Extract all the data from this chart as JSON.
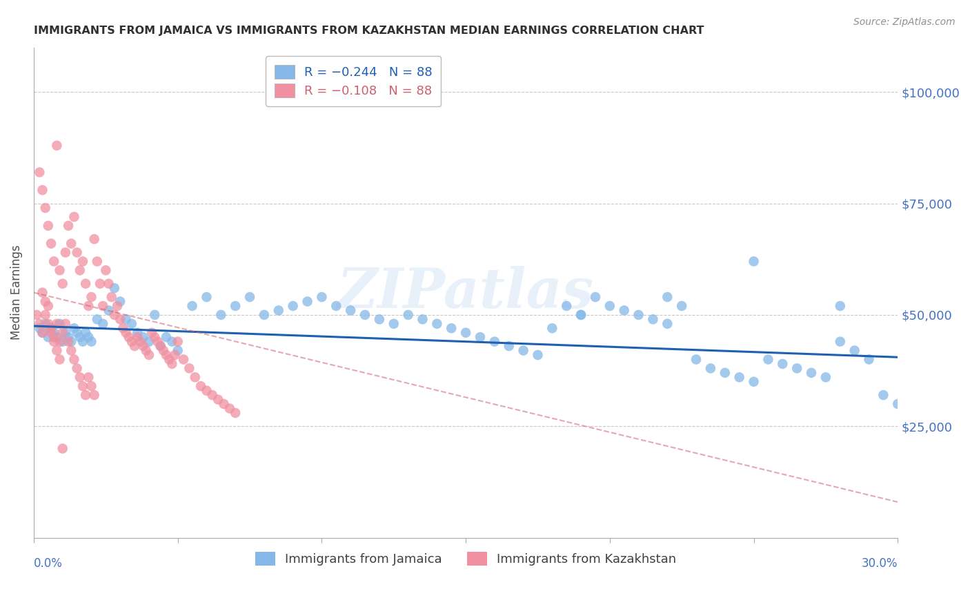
{
  "title": "IMMIGRANTS FROM JAMAICA VS IMMIGRANTS FROM KAZAKHSTAN MEDIAN EARNINGS CORRELATION CHART",
  "source": "Source: ZipAtlas.com",
  "ylabel": "Median Earnings",
  "xlim": [
    0.0,
    0.3
  ],
  "ylim": [
    0,
    110000
  ],
  "watermark": "ZIPatlas",
  "legend_label_jamaica": "Immigrants from Jamaica",
  "legend_label_kazakhstan": "Immigrants from Kazakhstan",
  "blue_color": "#85b8e8",
  "pink_color": "#f090a0",
  "blue_line_color": "#2060b0",
  "pink_line_color": "#d06070",
  "axis_color": "#4472c4",
  "title_color": "#303030",
  "source_color": "#909090",
  "background_color": "#ffffff",
  "grid_color": "#c8c8c8",
  "jamaica_x": [
    0.002,
    0.003,
    0.004,
    0.005,
    0.006,
    0.007,
    0.008,
    0.009,
    0.01,
    0.011,
    0.012,
    0.013,
    0.014,
    0.015,
    0.016,
    0.017,
    0.018,
    0.019,
    0.02,
    0.022,
    0.024,
    0.026,
    0.028,
    0.03,
    0.032,
    0.034,
    0.036,
    0.038,
    0.04,
    0.042,
    0.044,
    0.046,
    0.048,
    0.05,
    0.055,
    0.06,
    0.065,
    0.07,
    0.075,
    0.08,
    0.085,
    0.09,
    0.095,
    0.1,
    0.105,
    0.11,
    0.115,
    0.12,
    0.125,
    0.13,
    0.135,
    0.14,
    0.145,
    0.15,
    0.155,
    0.16,
    0.165,
    0.17,
    0.175,
    0.18,
    0.185,
    0.19,
    0.195,
    0.2,
    0.205,
    0.21,
    0.215,
    0.22,
    0.225,
    0.23,
    0.235,
    0.24,
    0.245,
    0.25,
    0.255,
    0.26,
    0.265,
    0.27,
    0.275,
    0.28,
    0.285,
    0.29,
    0.295,
    0.3,
    0.28,
    0.25,
    0.22,
    0.19
  ],
  "jamaica_y": [
    47000,
    46000,
    48000,
    45000,
    47000,
    46000,
    45000,
    48000,
    44000,
    46000,
    45000,
    44000,
    47000,
    46000,
    45000,
    44000,
    46000,
    45000,
    44000,
    49000,
    48000,
    51000,
    56000,
    53000,
    49000,
    48000,
    46000,
    45000,
    44000,
    50000,
    43000,
    45000,
    44000,
    42000,
    52000,
    54000,
    50000,
    52000,
    54000,
    50000,
    51000,
    52000,
    53000,
    54000,
    52000,
    51000,
    50000,
    49000,
    48000,
    50000,
    49000,
    48000,
    47000,
    46000,
    45000,
    44000,
    43000,
    42000,
    41000,
    47000,
    52000,
    50000,
    54000,
    52000,
    51000,
    50000,
    49000,
    48000,
    52000,
    40000,
    38000,
    37000,
    36000,
    35000,
    40000,
    39000,
    38000,
    37000,
    36000,
    44000,
    42000,
    40000,
    32000,
    30000,
    52000,
    62000,
    54000,
    50000
  ],
  "kazakhstan_x": [
    0.001,
    0.002,
    0.003,
    0.004,
    0.005,
    0.006,
    0.007,
    0.008,
    0.009,
    0.01,
    0.011,
    0.012,
    0.013,
    0.014,
    0.015,
    0.016,
    0.017,
    0.018,
    0.019,
    0.02,
    0.021,
    0.022,
    0.023,
    0.024,
    0.025,
    0.026,
    0.027,
    0.028,
    0.029,
    0.03,
    0.031,
    0.032,
    0.033,
    0.034,
    0.035,
    0.036,
    0.037,
    0.038,
    0.039,
    0.04,
    0.041,
    0.042,
    0.043,
    0.044,
    0.045,
    0.046,
    0.047,
    0.048,
    0.049,
    0.05,
    0.052,
    0.054,
    0.056,
    0.058,
    0.06,
    0.062,
    0.064,
    0.066,
    0.068,
    0.07,
    0.002,
    0.003,
    0.004,
    0.005,
    0.006,
    0.007,
    0.008,
    0.009,
    0.01,
    0.011,
    0.012,
    0.013,
    0.014,
    0.015,
    0.016,
    0.017,
    0.018,
    0.019,
    0.02,
    0.021,
    0.003,
    0.004,
    0.005,
    0.006,
    0.007,
    0.008,
    0.009,
    0.01
  ],
  "kazakhstan_y": [
    50000,
    82000,
    78000,
    74000,
    70000,
    66000,
    62000,
    88000,
    60000,
    57000,
    64000,
    70000,
    66000,
    72000,
    64000,
    60000,
    62000,
    57000,
    52000,
    54000,
    67000,
    62000,
    57000,
    52000,
    60000,
    57000,
    54000,
    50000,
    52000,
    49000,
    47000,
    46000,
    45000,
    44000,
    43000,
    45000,
    44000,
    43000,
    42000,
    41000,
    46000,
    45000,
    44000,
    43000,
    42000,
    41000,
    40000,
    39000,
    41000,
    44000,
    40000,
    38000,
    36000,
    34000,
    33000,
    32000,
    31000,
    30000,
    29000,
    28000,
    48000,
    46000,
    50000,
    52000,
    47000,
    45000,
    48000,
    44000,
    46000,
    48000,
    44000,
    42000,
    40000,
    38000,
    36000,
    34000,
    32000,
    36000,
    34000,
    32000,
    55000,
    53000,
    48000,
    46000,
    44000,
    42000,
    40000,
    20000
  ]
}
